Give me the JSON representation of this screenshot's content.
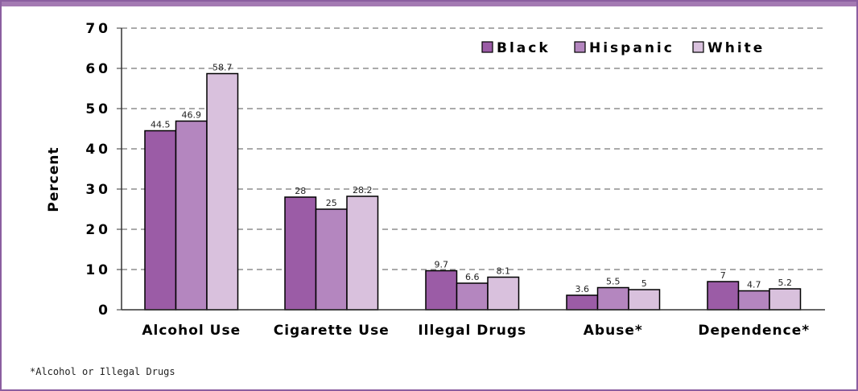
{
  "colors": {
    "frame": "#8b5ea0",
    "frame_top": "#a47ab3",
    "grid": "#555555",
    "series": [
      "#9b5ca6",
      "#b486bf",
      "#d9c1dd"
    ]
  },
  "footnote": "*Alcohol or Illegal Drugs",
  "chart_data": {
    "type": "bar",
    "title": "",
    "xlabel": "",
    "ylabel": "Percent",
    "ylim": [
      0,
      70
    ],
    "yticks": [
      0,
      10,
      20,
      30,
      40,
      50,
      60,
      70
    ],
    "grid": true,
    "legend_position": "top-right",
    "categories": [
      "Alcohol Use",
      "Cigarette Use",
      "Illegal Drugs",
      "Abuse*",
      "Dependence*"
    ],
    "series": [
      {
        "name": "Black",
        "values": [
          44.5,
          28,
          9.7,
          3.6,
          7
        ]
      },
      {
        "name": "Hispanic",
        "values": [
          46.9,
          25,
          6.6,
          5.5,
          4.7
        ]
      },
      {
        "name": "White",
        "values": [
          58.7,
          28.2,
          8.1,
          5,
          5.2
        ]
      }
    ]
  }
}
